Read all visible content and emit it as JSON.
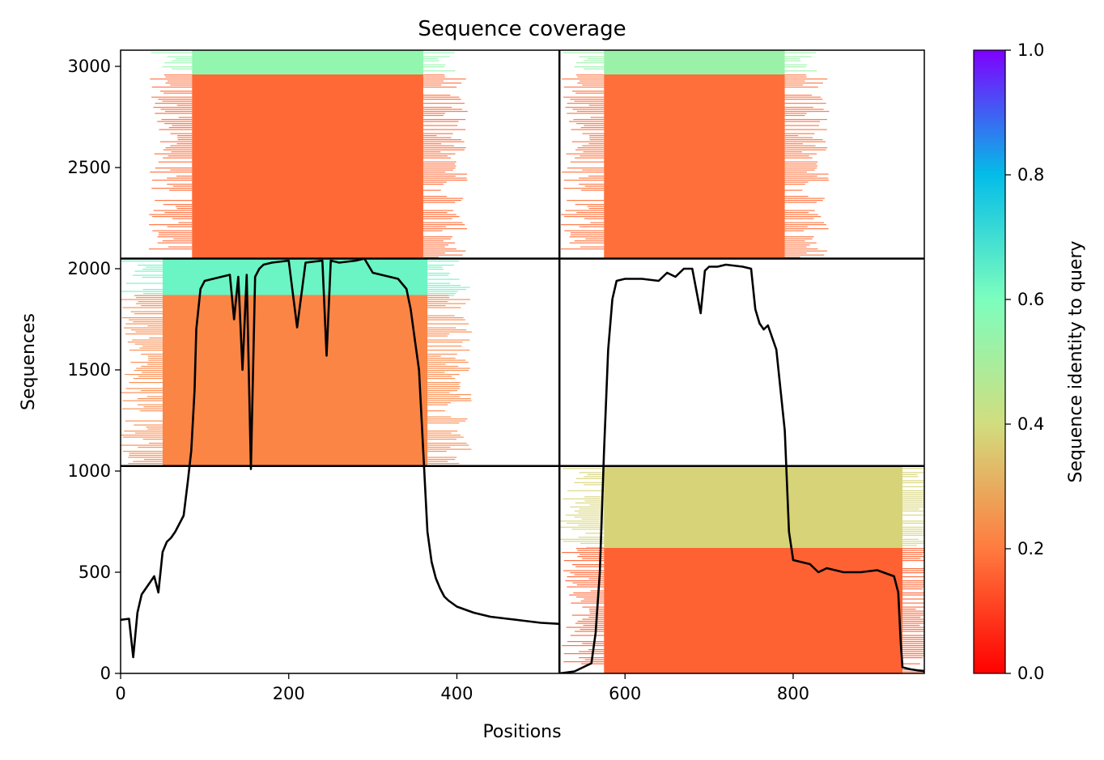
{
  "chart_data": {
    "type": "heatmap",
    "title": "Sequence coverage",
    "xlabel": "Positions",
    "ylabel": "Sequences",
    "xlim": [
      0,
      956
    ],
    "ylim": [
      0,
      3080
    ],
    "x_ticks": [
      0,
      200,
      400,
      600,
      800
    ],
    "y_ticks": [
      0,
      500,
      1000,
      1500,
      2000,
      2500,
      3000
    ],
    "colorbar": {
      "label": "Sequence identity to query",
      "range": [
        0,
        1
      ],
      "ticks": [
        0.0,
        0.2,
        0.4,
        0.6,
        0.8,
        1.0
      ],
      "colormap": "rainbow_r",
      "stops": [
        "#ff0000",
        "#ff7b3f",
        "#d1dd7e",
        "#7dfebe",
        "#03bde8",
        "#7f00ff"
      ]
    },
    "chain_boundaries": {
      "x": [
        522
      ],
      "y": [
        1025,
        2050
      ]
    },
    "coverage_blocks": [
      {
        "name": "chain-A-pair-1",
        "x": [
          0,
          522
        ],
        "y": [
          2050,
          3080
        ],
        "aligned_x": [
          85,
          360
        ],
        "rows": [
          {
            "y": [
              2960,
              3080
            ],
            "identity": 0.55
          },
          {
            "y": [
              2050,
              2960
            ],
            "identity": 0.17
          }
        ]
      },
      {
        "name": "chain-B-pair-1",
        "x": [
          522,
          956
        ],
        "y": [
          2050,
          3080
        ],
        "aligned_x": [
          575,
          790
        ],
        "rows": [
          {
            "y": [
              2960,
              3080
            ],
            "identity": 0.53
          },
          {
            "y": [
              2050,
              2960
            ],
            "identity": 0.18
          }
        ]
      },
      {
        "name": "chain-A-pair-2",
        "x": [
          0,
          522
        ],
        "y": [
          1025,
          2050
        ],
        "aligned_x": [
          50,
          365
        ],
        "rows": [
          {
            "y": [
              1870,
              2050
            ],
            "identity": 0.63
          },
          {
            "y": [
              1025,
              1870
            ],
            "identity": 0.22
          }
        ]
      },
      {
        "name": "chain-B-pair-3",
        "x": [
          522,
          956
        ],
        "y": [
          0,
          1025
        ],
        "aligned_x": [
          575,
          930
        ],
        "rows": [
          {
            "y": [
              620,
              1025
            ],
            "identity": 0.38
          },
          {
            "y": [
              0,
              620
            ],
            "identity": 0.16
          }
        ]
      }
    ],
    "coverage_line": {
      "x": [
        0,
        10,
        15,
        20,
        25,
        30,
        35,
        40,
        45,
        50,
        55,
        60,
        65,
        70,
        75,
        80,
        84,
        88,
        90,
        95,
        100,
        110,
        120,
        130,
        135,
        140,
        145,
        150,
        155,
        160,
        165,
        170,
        180,
        200,
        210,
        220,
        240,
        245,
        250,
        260,
        280,
        290,
        300,
        310,
        320,
        330,
        340,
        345,
        350,
        355,
        360,
        365,
        370,
        375,
        380,
        385,
        390,
        400,
        420,
        440,
        460,
        480,
        500,
        522,
        522,
        540,
        560,
        565,
        570,
        575,
        580,
        585,
        590,
        600,
        620,
        640,
        650,
        660,
        670,
        680,
        690,
        695,
        700,
        710,
        720,
        740,
        750,
        755,
        760,
        765,
        770,
        780,
        785,
        790,
        795,
        800,
        820,
        830,
        840,
        860,
        880,
        900,
        920,
        925,
        928,
        930,
        940,
        956
      ],
      "y": [
        265,
        270,
        80,
        300,
        390,
        420,
        450,
        480,
        400,
        600,
        650,
        670,
        700,
        740,
        780,
        950,
        1100,
        1400,
        1700,
        1900,
        1940,
        1950,
        1960,
        1970,
        1750,
        1960,
        1500,
        1970,
        1010,
        1960,
        2000,
        2020,
        2030,
        2040,
        1710,
        2030,
        2040,
        1570,
        2040,
        2030,
        2040,
        2050,
        1980,
        1970,
        1960,
        1950,
        1900,
        1800,
        1650,
        1500,
        1100,
        700,
        550,
        470,
        420,
        380,
        360,
        330,
        300,
        280,
        270,
        260,
        250,
        245,
        0,
        10,
        50,
        200,
        500,
        1100,
        1600,
        1850,
        1940,
        1950,
        1950,
        1940,
        1980,
        1960,
        2000,
        2000,
        1780,
        1990,
        2010,
        2010,
        2020,
        2010,
        2000,
        1800,
        1730,
        1700,
        1720,
        1600,
        1400,
        1200,
        700,
        560,
        540,
        500,
        520,
        500,
        500,
        510,
        480,
        400,
        150,
        30,
        20,
        10
      ]
    }
  }
}
